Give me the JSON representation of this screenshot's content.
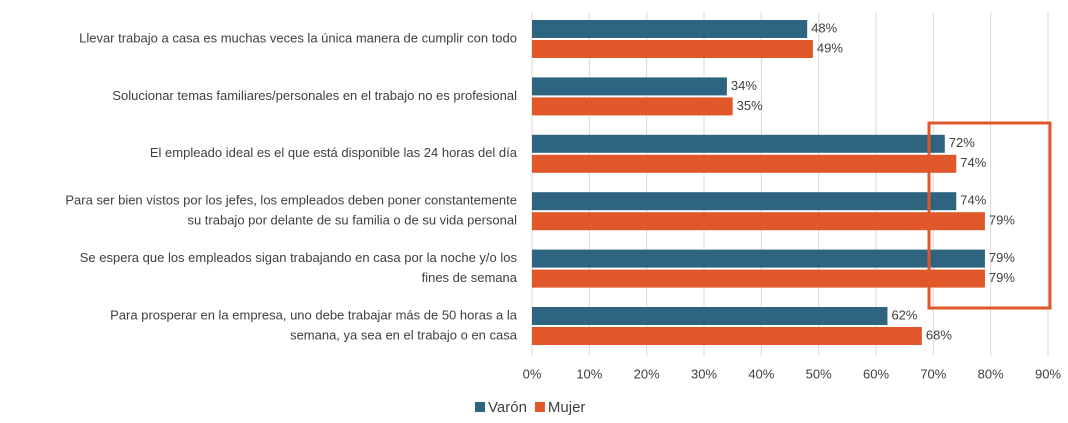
{
  "chart_data": {
    "type": "bar",
    "orientation": "horizontal",
    "categories": [
      [
        "Llevar trabajo a casa es muchas veces la única manera de cumplir con todo"
      ],
      [
        "Solucionar temas familiares/personales en el trabajo no es profesional"
      ],
      [
        "El empleado ideal es el que está disponible las 24 horas del día"
      ],
      [
        "Para ser bien vistos por los jefes, los empleados deben poner constantemente",
        "su trabajo por delante de su familia o de su vida personal"
      ],
      [
        "Se espera que los empleados sigan trabajando en casa por la noche y/o los",
        "fines de semana"
      ],
      [
        "Para prosperar en la empresa, uno debe trabajar más de 50 horas a la",
        "semana, ya sea en el trabajo o en casa"
      ]
    ],
    "series": [
      {
        "name": "Varón",
        "color": "#2e6480",
        "values": [
          48,
          34,
          72,
          74,
          79,
          62
        ],
        "value_labels": [
          "48%",
          "34%",
          "72%",
          "74%",
          "79%",
          "62%"
        ]
      },
      {
        "name": "Mujer",
        "color": "#e0572a",
        "values": [
          49,
          35,
          74,
          79,
          79,
          68
        ],
        "value_labels": [
          "49%",
          "35%",
          "74%",
          "79%",
          "79%",
          "68%"
        ]
      }
    ],
    "xlim": [
      0,
      90
    ],
    "xticks": [
      {
        "value": 0,
        "label": "0%"
      },
      {
        "value": 10,
        "label": "10%"
      },
      {
        "value": 20,
        "label": "20%"
      },
      {
        "value": 30,
        "label": "30%"
      },
      {
        "value": 40,
        "label": "40%"
      },
      {
        "value": 50,
        "label": "50%"
      },
      {
        "value": 60,
        "label": "60%"
      },
      {
        "value": 70,
        "label": "70%"
      },
      {
        "value": 80,
        "label": "80%"
      },
      {
        "value": 90,
        "label": "90%"
      }
    ],
    "grid": true,
    "legend": "bottom"
  }
}
